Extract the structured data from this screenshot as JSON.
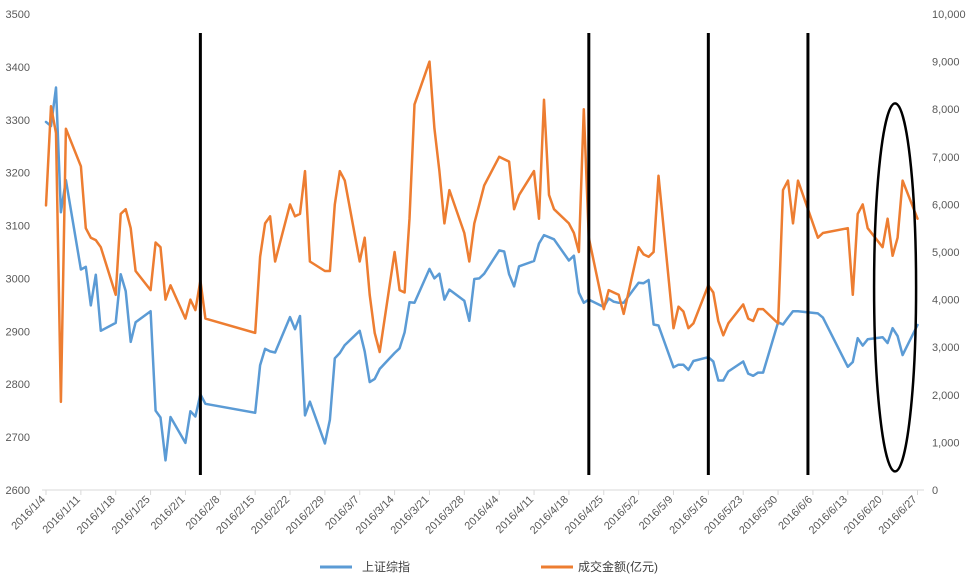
{
  "chart_data": {
    "type": "line",
    "x_axis": {
      "tick_labels": [
        "2016/1/4",
        "2016/1/11",
        "2016/1/18",
        "2016/1/25",
        "2016/2/1",
        "2016/2/8",
        "2016/2/15",
        "2016/2/22",
        "2016/2/29",
        "2016/3/7",
        "2016/3/14",
        "2016/3/21",
        "2016/3/28",
        "2016/4/4",
        "2016/4/11",
        "2016/4/18",
        "2016/4/25",
        "2016/5/2",
        "2016/5/9",
        "2016/5/16",
        "2016/5/23",
        "2016/5/30",
        "2016/6/6",
        "2016/6/13",
        "2016/6/20",
        "2016/6/27"
      ],
      "tick_day_offsets": [
        0,
        7,
        14,
        21,
        28,
        35,
        42,
        49,
        56,
        63,
        70,
        77,
        84,
        91,
        98,
        105,
        112,
        119,
        126,
        133,
        140,
        147,
        154,
        161,
        168,
        175
      ],
      "range_days": [
        0,
        177
      ]
    },
    "y_left": {
      "min": 2600,
      "max": 3500,
      "tick_labels": [
        "2600",
        "2700",
        "2800",
        "2900",
        "3000",
        "3100",
        "3200",
        "3300",
        "3400",
        "3500"
      ],
      "tick_values": [
        2600,
        2700,
        2800,
        2900,
        3000,
        3100,
        3200,
        3300,
        3400,
        3500
      ]
    },
    "y_right": {
      "min": 0,
      "max": 10000,
      "tick_labels": [
        "0",
        "1,000",
        "2,000",
        "3,000",
        "4,000",
        "5,000",
        "6,000",
        "7,000",
        "8,000",
        "9,000",
        "10,000"
      ],
      "tick_values": [
        0,
        1000,
        2000,
        3000,
        4000,
        5000,
        6000,
        7000,
        8000,
        9000,
        10000
      ]
    },
    "series": [
      {
        "name": "上证综指",
        "axis": "left",
        "color": "#5B9BD5",
        "x": [
          0,
          1,
          2,
          3,
          4,
          7,
          8,
          9,
          10,
          11,
          14,
          15,
          16,
          17,
          18,
          21,
          22,
          23,
          24,
          25,
          28,
          29,
          30,
          31,
          32,
          42,
          43,
          44,
          45,
          46,
          49,
          50,
          51,
          52,
          53,
          56,
          57,
          58,
          59,
          60,
          63,
          64,
          65,
          66,
          67,
          70,
          71,
          72,
          73,
          74,
          77,
          78,
          79,
          80,
          81,
          84,
          85,
          86,
          87,
          88,
          91,
          92,
          93,
          94,
          95,
          98,
          99,
          100,
          101,
          102,
          105,
          106,
          107,
          108,
          109,
          112,
          113,
          114,
          115,
          116,
          119,
          120,
          121,
          122,
          123,
          126,
          127,
          128,
          129,
          130,
          133,
          134,
          135,
          136,
          137,
          140,
          141,
          142,
          143,
          144,
          147,
          148,
          149,
          150,
          151,
          155,
          156,
          161,
          162,
          163,
          164,
          165,
          168,
          169,
          170,
          171,
          172,
          175
        ],
        "values": [
          3296,
          3288,
          3361,
          3125,
          3186,
          3017,
          3022,
          2949,
          3007,
          2901,
          2916,
          3008,
          2976,
          2880,
          2917,
          2938,
          2750,
          2737,
          2656,
          2738,
          2689,
          2749,
          2739,
          2781,
          2763,
          2746,
          2836,
          2867,
          2862,
          2860,
          2927,
          2904,
          2929,
          2741,
          2767,
          2688,
          2733,
          2849,
          2859,
          2874,
          2901,
          2862,
          2804,
          2810,
          2829,
          2859,
          2868,
          2898,
          2955,
          2954,
          3018,
          3000,
          3009,
          2960,
          2979,
          2958,
          2920,
          2999,
          3000,
          3009,
          3053,
          3051,
          3008,
          2985,
          3023,
          3033,
          3066,
          3082,
          3078,
          3074,
          3034,
          3043,
          2973,
          2954,
          2960,
          2946,
          2962,
          2956,
          2954,
          2954,
          2992,
          2991,
          2997,
          2913,
          2911,
          2832,
          2837,
          2837,
          2827,
          2844,
          2851,
          2843,
          2807,
          2807,
          2824,
          2843,
          2820,
          2816,
          2822,
          2822,
          2917,
          2913,
          2926,
          2938,
          2938,
          2934,
          2926,
          2833,
          2842,
          2887,
          2873,
          2885,
          2889,
          2878,
          2906,
          2891,
          2855,
          2912
        ]
      },
      {
        "name": "成交金额(亿元)",
        "axis": "right",
        "color": "#ED7D31",
        "x": [
          0,
          1,
          2,
          3,
          4,
          7,
          8,
          9,
          10,
          11,
          14,
          15,
          16,
          17,
          18,
          21,
          22,
          23,
          24,
          25,
          28,
          29,
          30,
          31,
          32,
          42,
          43,
          44,
          45,
          46,
          49,
          50,
          51,
          52,
          53,
          56,
          57,
          58,
          59,
          60,
          63,
          64,
          65,
          66,
          67,
          70,
          71,
          72,
          73,
          74,
          77,
          78,
          79,
          80,
          81,
          84,
          85,
          86,
          87,
          88,
          91,
          92,
          93,
          94,
          95,
          98,
          99,
          100,
          101,
          102,
          105,
          106,
          107,
          108,
          109,
          112,
          113,
          114,
          115,
          116,
          119,
          120,
          121,
          122,
          123,
          126,
          127,
          128,
          129,
          130,
          133,
          134,
          135,
          136,
          137,
          140,
          141,
          142,
          143,
          144,
          147,
          148,
          149,
          150,
          151,
          155,
          156,
          161,
          162,
          163,
          164,
          165,
          168,
          169,
          170,
          171,
          172,
          175
        ],
        "values": [
          5980,
          8060,
          7500,
          1850,
          7590,
          6800,
          5500,
          5300,
          5250,
          5100,
          4100,
          5800,
          5900,
          5500,
          4600,
          4200,
          5200,
          5100,
          4000,
          4300,
          3600,
          4000,
          3780,
          4400,
          3600,
          3300,
          4900,
          5600,
          5750,
          4800,
          6000,
          5750,
          5800,
          6700,
          4800,
          4600,
          4600,
          6000,
          6700,
          6500,
          4800,
          5300,
          4100,
          3300,
          2900,
          5000,
          4200,
          4150,
          5700,
          8100,
          9000,
          7600,
          6700,
          5600,
          6300,
          5400,
          4800,
          5600,
          6000,
          6400,
          7000,
          6950,
          6900,
          5900,
          6200,
          6700,
          5700,
          8200,
          6200,
          5900,
          5600,
          5400,
          5000,
          8000,
          5300,
          3800,
          4200,
          4150,
          4100,
          3700,
          5100,
          4950,
          4900,
          5000,
          6600,
          3400,
          3850,
          3750,
          3400,
          3500,
          4300,
          4150,
          3550,
          3250,
          3500,
          3900,
          3600,
          3550,
          3800,
          3800,
          3500,
          6300,
          6500,
          5600,
          6500,
          5300,
          5400,
          5500,
          4100,
          5800,
          6000,
          5500,
          5100,
          5700,
          4920,
          5300,
          6500,
          5700
        ]
      }
    ],
    "markers": {
      "vertical_lines_at_day": [
        31,
        109,
        133,
        153
      ],
      "ellipse_center_day": 170.5,
      "ellipse_center_left_value": 2983
    },
    "legend_position": "bottom-center",
    "grid": false
  }
}
